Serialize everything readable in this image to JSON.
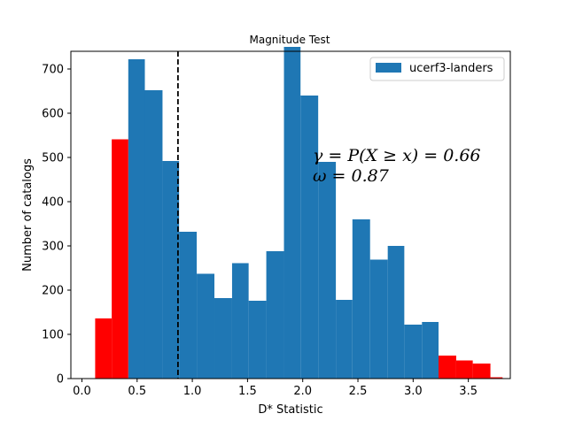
{
  "chart_data": {
    "type": "bar",
    "title": "Magnitude Test",
    "xlabel": "D* Statistic",
    "ylabel": "Number of catalogs",
    "xlim": [
      -0.1,
      3.88
    ],
    "ylim": [
      0,
      740
    ],
    "xticks": [
      0.0,
      0.5,
      1.0,
      1.5,
      2.0,
      2.5,
      3.0,
      3.5
    ],
    "xtick_labels": [
      "0.0",
      "0.5",
      "1.0",
      "1.5",
      "2.0",
      "2.5",
      "3.0",
      "3.5"
    ],
    "yticks": [
      0,
      100,
      200,
      300,
      400,
      500,
      600,
      700
    ],
    "ytick_labels": [
      "0",
      "100",
      "200",
      "300",
      "400",
      "500",
      "600",
      "700"
    ],
    "grid": false,
    "legend": {
      "position": "top-right",
      "entries": [
        "ucerf3-landers"
      ]
    },
    "series": [
      {
        "name": "ucerf3-landers",
        "color": "#1f77b4",
        "bins": [
          [
            0.42,
            0.57,
            722
          ],
          [
            0.57,
            0.73,
            652
          ],
          [
            0.73,
            0.88,
            492
          ],
          [
            0.88,
            1.04,
            332
          ],
          [
            1.04,
            1.2,
            237
          ],
          [
            1.2,
            1.36,
            182
          ],
          [
            1.36,
            1.51,
            261
          ],
          [
            1.51,
            1.67,
            176
          ],
          [
            1.67,
            1.83,
            288
          ],
          [
            1.83,
            1.98,
            750
          ],
          [
            1.98,
            2.14,
            640
          ],
          [
            2.14,
            2.3,
            490
          ],
          [
            2.3,
            2.45,
            178
          ],
          [
            2.45,
            2.61,
            360
          ],
          [
            2.61,
            2.77,
            269
          ],
          [
            2.77,
            2.92,
            300
          ],
          [
            2.92,
            3.08,
            122
          ],
          [
            3.08,
            3.23,
            128
          ]
        ]
      },
      {
        "color": "#ff0000",
        "bins": [
          [
            0.12,
            0.27,
            136
          ],
          [
            0.27,
            0.42,
            541
          ],
          [
            3.23,
            3.39,
            52
          ],
          [
            3.39,
            3.54,
            41
          ],
          [
            3.54,
            3.7,
            34
          ],
          [
            3.7,
            3.81,
            3
          ]
        ]
      }
    ],
    "reference_line": {
      "x": 0.87,
      "style": "dashed",
      "color": "#000000"
    },
    "annotations": [
      "γ = P(X ≥ x) = 0.66",
      "ω = 0.87"
    ]
  }
}
